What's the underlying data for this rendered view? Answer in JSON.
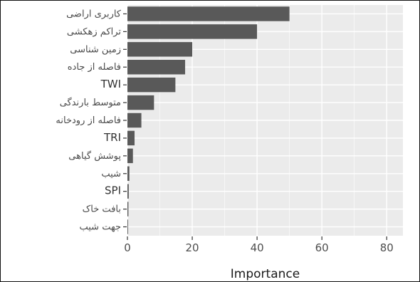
{
  "chart_data": {
    "type": "bar",
    "orientation": "horizontal",
    "categories": [
      "کاربری اراضی",
      "تراکم زهکشی",
      "زمین شناسی",
      "فاصله از جاده",
      "TWI",
      "متوسط بارندگی",
      "فاصله از رودخانه",
      "TRI",
      "پوشش گیاهی",
      "شیب",
      "SPI",
      "بافت خاک",
      "جهت شیب"
    ],
    "values": [
      50,
      40,
      20,
      17.8,
      14.8,
      8.2,
      4.3,
      2.2,
      1.7,
      0.6,
      0.4,
      0.3,
      0.2
    ],
    "xlabel": "Importance",
    "ylabel": "",
    "xlim": [
      0,
      85
    ],
    "x_ticks": [
      0,
      20,
      40,
      60,
      80
    ],
    "x_tick_labels": [
      "0",
      "20",
      "40",
      "60",
      "80"
    ],
    "grid": true,
    "bar_color": "#595959",
    "panel_color": "#ebebeb",
    "grid_color": "#ffffff"
  }
}
